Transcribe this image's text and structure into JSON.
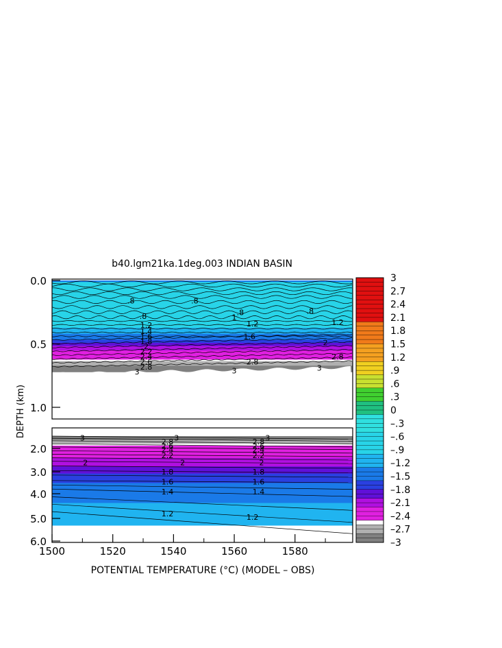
{
  "chart_data": {
    "type": "heatmap",
    "title": "b40.lgm21ka.1deg.003 INDIAN BASIN",
    "xlabel": "POTENTIAL TEMPERATURE (°C) (MODEL – OBS)",
    "ylabel": "DEPTH (km)",
    "x_ticks": [
      "1500",
      "1520",
      "1540",
      "1560",
      "1580"
    ],
    "x_range": [
      1500,
      1599
    ],
    "upper_panel": {
      "y_range": [
        0.0,
        1.1
      ],
      "y_ticks": [
        "0.0",
        "0.5",
        "1.0"
      ],
      "y_tick_values": [
        0.0,
        0.5,
        1.0
      ],
      "bottom_depth_km": 0.72
    },
    "lower_panel": {
      "y_range": [
        1.6,
        6.0
      ],
      "y_ticks": [
        "2.0",
        "3.0",
        "4.0",
        "5.0",
        "6.0"
      ],
      "y_tick_values": [
        2.0,
        3.0,
        4.0,
        5.0,
        6.0
      ],
      "bottom_depth_km": 5.3
    },
    "colorbar": {
      "min": -3,
      "max": 3,
      "step": 0.1,
      "labels": [
        "3",
        "2.7",
        "2.4",
        "2.1",
        "1.8",
        "1.5",
        "1.2",
        ".9",
        ".6",
        ".3",
        "0",
        "–.3",
        "–.6",
        "–.9",
        "–1.2",
        "–1.5",
        "–1.8",
        "–2.1",
        "–2.4",
        "–2.7",
        "–3"
      ],
      "label_values": [
        3,
        2.7,
        2.4,
        2.1,
        1.8,
        1.5,
        1.2,
        0.9,
        0.6,
        0.3,
        0,
        -0.3,
        -0.6,
        -0.9,
        -1.2,
        -1.5,
        -1.8,
        -2.1,
        -2.4,
        -2.7,
        -3
      ]
    },
    "upper_profile": [
      {
        "d": 0.0,
        "v": -2.0
      },
      {
        "d": 0.02,
        "v": -0.6
      },
      {
        "d": 0.1,
        "v": -0.5
      },
      {
        "d": 0.2,
        "v": -0.7
      },
      {
        "d": 0.3,
        "v": -0.8
      },
      {
        "d": 0.36,
        "v": -0.9
      },
      {
        "d": 0.4,
        "v": -1.2
      },
      {
        "d": 0.45,
        "v": -1.5
      },
      {
        "d": 0.5,
        "v": -1.9
      },
      {
        "d": 0.55,
        "v": -2.2
      },
      {
        "d": 0.6,
        "v": -2.4
      },
      {
        "d": 0.64,
        "v": -2.6
      },
      {
        "d": 0.68,
        "v": -2.85
      },
      {
        "d": 0.72,
        "v": -3.0
      }
    ],
    "lower_profile": [
      {
        "d": 1.6,
        "v": -3.0
      },
      {
        "d": 1.75,
        "v": -2.8
      },
      {
        "d": 1.9,
        "v": -2.5
      },
      {
        "d": 2.2,
        "v": -2.3
      },
      {
        "d": 2.6,
        "v": -2.1
      },
      {
        "d": 3.0,
        "v": -1.85
      },
      {
        "d": 3.4,
        "v": -1.65
      },
      {
        "d": 3.8,
        "v": -1.45
      },
      {
        "d": 4.4,
        "v": -1.3
      },
      {
        "d": 5.0,
        "v": -1.2
      },
      {
        "d": 5.3,
        "v": -1.1
      }
    ],
    "contour_labels": [
      {
        "text": ".8",
        "x": 1526,
        "d": 0.16,
        "panel": "upper"
      },
      {
        "text": ".8",
        "x": 1547,
        "d": 0.16,
        "panel": "upper"
      },
      {
        "text": ".8",
        "x": 1585,
        "d": 0.24,
        "panel": "upper"
      },
      {
        "text": ".8",
        "x": 1530,
        "d": 0.28,
        "panel": "upper"
      },
      {
        "text": ".8",
        "x": 1562,
        "d": 0.25,
        "panel": "upper"
      },
      {
        "text": "1",
        "x": 1560,
        "d": 0.29,
        "panel": "upper"
      },
      {
        "text": "1.2",
        "x": 1531,
        "d": 0.35,
        "panel": "upper"
      },
      {
        "text": "1.2",
        "x": 1566,
        "d": 0.34,
        "panel": "upper"
      },
      {
        "text": "1.2",
        "x": 1594,
        "d": 0.33,
        "panel": "upper"
      },
      {
        "text": "1.4",
        "x": 1531,
        "d": 0.4,
        "panel": "upper"
      },
      {
        "text": "1.6",
        "x": 1531,
        "d": 0.44,
        "panel": "upper"
      },
      {
        "text": "1.6",
        "x": 1565,
        "d": 0.44,
        "panel": "upper"
      },
      {
        "text": "1.8",
        "x": 1531,
        "d": 0.48,
        "panel": "upper"
      },
      {
        "text": "2",
        "x": 1531,
        "d": 0.52,
        "panel": "upper"
      },
      {
        "text": "2",
        "x": 1590,
        "d": 0.49,
        "panel": "upper"
      },
      {
        "text": "2.2",
        "x": 1531,
        "d": 0.56,
        "panel": "upper"
      },
      {
        "text": "2.4",
        "x": 1531,
        "d": 0.6,
        "panel": "upper"
      },
      {
        "text": "2.6",
        "x": 1531,
        "d": 0.64,
        "panel": "upper"
      },
      {
        "text": "2.8",
        "x": 1531,
        "d": 0.68,
        "panel": "upper"
      },
      {
        "text": "2.8",
        "x": 1566,
        "d": 0.64,
        "panel": "upper"
      },
      {
        "text": "2.8",
        "x": 1594,
        "d": 0.6,
        "panel": "upper"
      },
      {
        "text": "3",
        "x": 1528,
        "d": 0.72,
        "panel": "upper"
      },
      {
        "text": "3",
        "x": 1560,
        "d": 0.71,
        "panel": "upper"
      },
      {
        "text": "3",
        "x": 1588,
        "d": 0.69,
        "panel": "upper"
      },
      {
        "text": "3",
        "x": 1510,
        "d": 1.65,
        "panel": "lower"
      },
      {
        "text": "3",
        "x": 1541,
        "d": 1.65,
        "panel": "lower"
      },
      {
        "text": "3",
        "x": 1571,
        "d": 1.65,
        "panel": "lower"
      },
      {
        "text": "2.8",
        "x": 1538,
        "d": 1.78,
        "panel": "lower"
      },
      {
        "text": "2.8",
        "x": 1568,
        "d": 1.78,
        "panel": "lower"
      },
      {
        "text": "2.6",
        "x": 1538,
        "d": 1.92,
        "panel": "lower"
      },
      {
        "text": "2.6",
        "x": 1568,
        "d": 1.92,
        "panel": "lower"
      },
      {
        "text": "2.4",
        "x": 1538,
        "d": 2.05,
        "panel": "lower"
      },
      {
        "text": "2.4",
        "x": 1568,
        "d": 2.05,
        "panel": "lower"
      },
      {
        "text": "2.2",
        "x": 1538,
        "d": 2.3,
        "panel": "lower"
      },
      {
        "text": "2.2",
        "x": 1568,
        "d": 2.3,
        "panel": "lower"
      },
      {
        "text": "2",
        "x": 1511,
        "d": 2.6,
        "panel": "lower"
      },
      {
        "text": "2",
        "x": 1543,
        "d": 2.6,
        "panel": "lower"
      },
      {
        "text": "2",
        "x": 1569,
        "d": 2.6,
        "panel": "lower"
      },
      {
        "text": "1.8",
        "x": 1538,
        "d": 3.0,
        "panel": "lower"
      },
      {
        "text": "1.8",
        "x": 1568,
        "d": 3.0,
        "panel": "lower"
      },
      {
        "text": "1.6",
        "x": 1538,
        "d": 3.45,
        "panel": "lower"
      },
      {
        "text": "1.6",
        "x": 1568,
        "d": 3.45,
        "panel": "lower"
      },
      {
        "text": "1.4",
        "x": 1538,
        "d": 3.9,
        "panel": "lower"
      },
      {
        "text": "1.4",
        "x": 1568,
        "d": 3.9,
        "panel": "lower"
      },
      {
        "text": "1.2",
        "x": 1538,
        "d": 4.8,
        "panel": "lower"
      },
      {
        "text": "1.2",
        "x": 1566,
        "d": 4.95,
        "panel": "lower"
      }
    ]
  }
}
